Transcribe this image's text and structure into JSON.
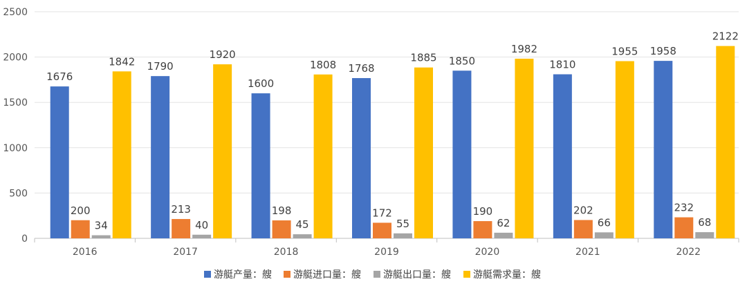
{
  "chart_data": {
    "type": "bar",
    "title": "",
    "xlabel": "",
    "ylabel": "",
    "ylim": [
      0,
      2500
    ],
    "yticks": [
      0,
      500,
      1000,
      1500,
      2000,
      2500
    ],
    "grid": true,
    "legend_position": "bottom",
    "categories": [
      "2016",
      "2017",
      "2018",
      "2019",
      "2020",
      "2021",
      "2022"
    ],
    "series": [
      {
        "name": "游艇产量：艘",
        "color": "#4472C4",
        "values": [
          1676,
          1790,
          1600,
          1768,
          1850,
          1810,
          1958
        ]
      },
      {
        "name": "游艇进口量：艘",
        "color": "#ED7D31",
        "values": [
          200,
          213,
          198,
          172,
          190,
          202,
          232
        ]
      },
      {
        "name": "游艇出口量：艘",
        "color": "#A5A5A5",
        "values": [
          34,
          40,
          45,
          55,
          62,
          66,
          68
        ]
      },
      {
        "name": "游艇需求量：艘",
        "color": "#FFC000",
        "values": [
          1842,
          1920,
          1808,
          1885,
          1982,
          1955,
          2122
        ]
      }
    ]
  }
}
